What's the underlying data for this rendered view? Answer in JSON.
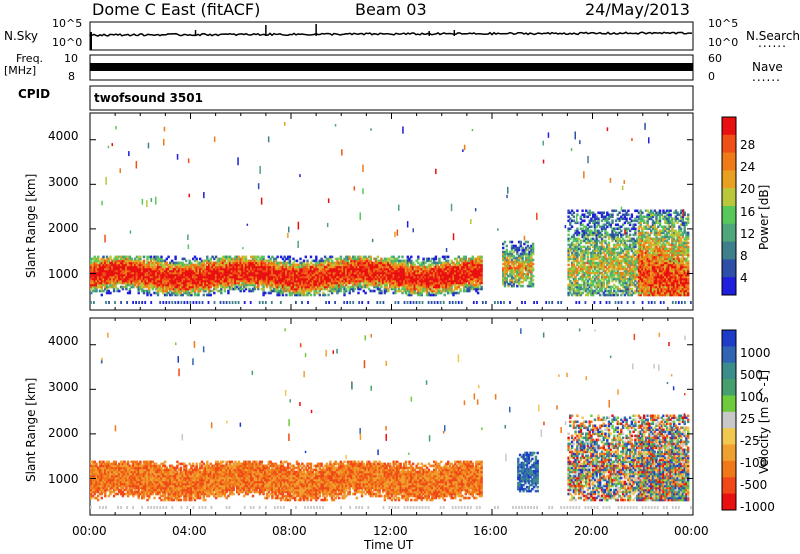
{
  "header": {
    "radar": "Dome C East (fitACF)",
    "beam": "Beam 03",
    "date": "24/May/2013"
  },
  "labels": {
    "nsky": "N.Sky",
    "nsearch": "N.Search",
    "freq": "Freq.",
    "freq_unit": "[MHz]",
    "nave": "Nave",
    "cpid": "CPID",
    "program": "twofsound 3501",
    "dots": "......"
  },
  "chart_data": [
    {
      "type": "line",
      "title": "",
      "left_ylabel": "N.Sky",
      "right_ylabel": "N.Search",
      "left_ticks": [
        "10^5",
        "10^0"
      ],
      "right_ticks": [
        "10^5",
        "10^0"
      ],
      "xlim": [
        "00:00",
        "24:00"
      ],
      "series": [
        {
          "name": "N.Sky",
          "level": "approximately 10^1 (flat noise trace)"
        }
      ]
    },
    {
      "type": "line",
      "left_ylabel": "Freq. [MHz]",
      "right_ylabel": "Nave",
      "left_ticks": [
        10,
        8
      ],
      "right_ticks": [
        60,
        0
      ],
      "left_ylim": [
        8,
        10
      ],
      "right_ylim": [
        0,
        60
      ],
      "series": [
        {
          "name": "Freq.",
          "values_approx": "alternating 10 and 8 MHz (twofsound)"
        },
        {
          "name": "Nave",
          "values_approx": "approximately 20"
        }
      ]
    },
    {
      "type": "heatmap",
      "panel": "Power",
      "ylabel": "Slant Range [km]",
      "ylim": [
        180,
        4600
      ],
      "yticks": [
        1000,
        2000,
        3000,
        4000
      ],
      "xlabel": "Time UT",
      "xticks": [
        "00:00",
        "04:00",
        "08:00",
        "12:00",
        "16:00",
        "20:00",
        "00:00"
      ],
      "xlim_hours": [
        0,
        24
      ],
      "colorbar": {
        "label": "Power [dB]",
        "range": [
          0,
          32
        ],
        "ticks": [
          4,
          8,
          12,
          16,
          20,
          24,
          28
        ],
        "colors": [
          "#1e1edc",
          "#2d4fa8",
          "#3f7f8c",
          "#4fa67a",
          "#59c85a",
          "#b8c83a",
          "#e8a020",
          "#ee7a18",
          "#f05018",
          "#e81010"
        ]
      },
      "echo_regions": [
        {
          "t_start": 0.0,
          "t_end": 15.6,
          "r_min": 500,
          "r_max": 1400,
          "level": "strong (20-30 dB)"
        },
        {
          "t_start": 16.4,
          "t_end": 17.6,
          "r_min": 700,
          "r_max": 1700,
          "level": "moderate"
        },
        {
          "t_start": 19.0,
          "t_end": 23.8,
          "r_min": 500,
          "r_max": 2400,
          "level": "strong near 22-24 UT"
        }
      ]
    },
    {
      "type": "heatmap",
      "panel": "Velocity",
      "ylabel": "Slant Range [km]",
      "ylim": [
        180,
        4600
      ],
      "yticks": [
        1000,
        2000,
        3000,
        4000
      ],
      "xlabel": "Time UT",
      "xticks": [
        "00:00",
        "04:00",
        "08:00",
        "12:00",
        "16:00",
        "20:00",
        "00:00"
      ],
      "xlim_hours": [
        0,
        24
      ],
      "colorbar": {
        "label": "Velocity [m s^-1]",
        "ticks": [
          1000,
          500,
          100,
          25,
          -25,
          -100,
          -500,
          -1000
        ],
        "colors": [
          "#1e3cc8",
          "#3264b4",
          "#3c8c8c",
          "#46a06e",
          "#6ecc3c",
          "#c8c8c8",
          "#f0c850",
          "#f0a030",
          "#f07818",
          "#f04818",
          "#e81010"
        ]
      },
      "echo_regions": [
        {
          "t_start": 0.0,
          "t_end": 15.6,
          "r_min": 500,
          "r_max": 1400,
          "level": "-100 to -500 m/s"
        },
        {
          "t_start": 17.0,
          "t_end": 17.8,
          "r_min": 700,
          "r_max": 1600,
          "level": "+500 to +1000 m/s"
        },
        {
          "t_start": 19.0,
          "t_end": 23.8,
          "r_min": 500,
          "r_max": 2400,
          "level": "mixed"
        }
      ]
    }
  ]
}
